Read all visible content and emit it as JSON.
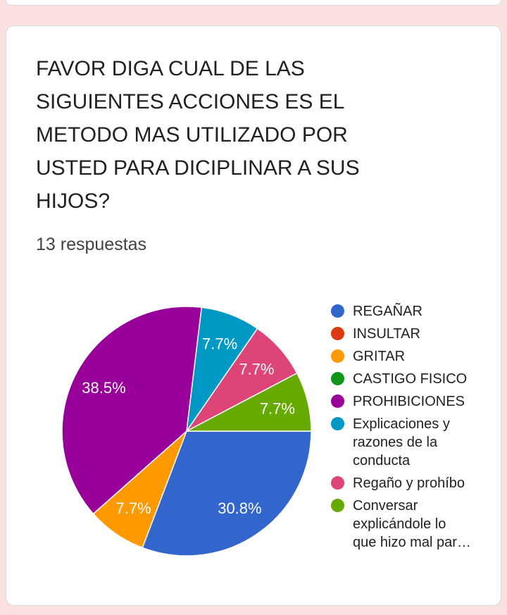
{
  "page": {
    "background_color": "#fbe2e0",
    "card_border_color": "#dadce0"
  },
  "question_card": {
    "title": "FAVOR DIGA CUAL DE LAS SIGUIENTES ACCIONES ES EL METODO MAS UTILIZADO POR USTED PARA DICIPLINAR A SUS HIJOS?",
    "responses_label": "13 respuestas"
  },
  "chart_data": {
    "type": "pie",
    "title": "",
    "total_responses": 13,
    "start_angle_deg": 90,
    "direction": "clockwise",
    "label_radius_fraction": 0.75,
    "label_color": "#ffffff",
    "separator_color": "#ffffff",
    "legend_position": "right",
    "slices": [
      {
        "label": "REGAÑAR",
        "legend_lines": [
          "REGAÑAR"
        ],
        "color": "#3366CC",
        "count": 4,
        "percent": 30.8,
        "percent_label": "30.8%"
      },
      {
        "label": "INSULTAR",
        "legend_lines": [
          "INSULTAR"
        ],
        "color": "#DC3912",
        "count": 0,
        "percent": 0,
        "percent_label": ""
      },
      {
        "label": "GRITAR",
        "legend_lines": [
          "GRITAR"
        ],
        "color": "#FF9900",
        "count": 1,
        "percent": 7.7,
        "percent_label": "7.7%"
      },
      {
        "label": "CASTIGO FISICO",
        "legend_lines": [
          "CASTIGO FISICO"
        ],
        "color": "#109618",
        "count": 0,
        "percent": 0,
        "percent_label": ""
      },
      {
        "label": "PROHIBICIONES",
        "legend_lines": [
          "PROHIBICIONES"
        ],
        "color": "#990099",
        "count": 5,
        "percent": 38.5,
        "percent_label": "38.5%"
      },
      {
        "label": "Explicaciones y razones de la conducta",
        "legend_lines": [
          "Explicaciones y",
          "razones de la",
          "conducta"
        ],
        "color": "#0099C6",
        "count": 1,
        "percent": 7.7,
        "percent_label": "7.7%"
      },
      {
        "label": "Regaño y prohíbo",
        "legend_lines": [
          "Regaño y prohíbo"
        ],
        "color": "#DD4477",
        "count": 1,
        "percent": 7.7,
        "percent_label": "7.7%"
      },
      {
        "label": "Conversar explicándole lo que hizo mal par…",
        "legend_lines": [
          "Conversar",
          "explicándole lo",
          "que hizo mal par…"
        ],
        "color": "#66AA00",
        "count": 1,
        "percent": 7.7,
        "percent_label": "7.7%"
      }
    ]
  }
}
